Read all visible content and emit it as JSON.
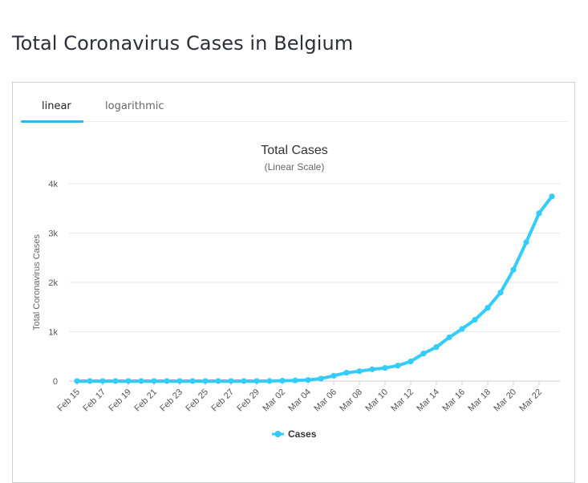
{
  "page": {
    "title": "Total Coronavirus Cases in Belgium"
  },
  "tabs": [
    {
      "label": "linear",
      "active": true
    },
    {
      "label": "logarithmic",
      "active": false
    }
  ],
  "colors": {
    "series": "#33ccff",
    "tab_accent": "#2fb4ef"
  },
  "chart_data": {
    "type": "line",
    "title": "Total Cases",
    "subtitle": "(Linear Scale)",
    "ylabel": "Total Coronavirus Cases",
    "xlabel": "",
    "ylim": [
      0,
      4000
    ],
    "yticks": [
      0,
      1000,
      2000,
      3000,
      4000
    ],
    "ytick_labels": [
      "0",
      "1k",
      "2k",
      "3k",
      "4k"
    ],
    "grid": true,
    "legend": "bottom-center",
    "x": [
      "Feb 15",
      "Feb 16",
      "Feb 17",
      "Feb 18",
      "Feb 19",
      "Feb 20",
      "Feb 21",
      "Feb 22",
      "Feb 23",
      "Feb 24",
      "Feb 25",
      "Feb 26",
      "Feb 27",
      "Feb 28",
      "Feb 29",
      "Mar 01",
      "Mar 02",
      "Mar 03",
      "Mar 04",
      "Mar 05",
      "Mar 06",
      "Mar 07",
      "Mar 08",
      "Mar 09",
      "Mar 10",
      "Mar 11",
      "Mar 12",
      "Mar 13",
      "Mar 14",
      "Mar 15",
      "Mar 16",
      "Mar 17",
      "Mar 18",
      "Mar 19",
      "Mar 20",
      "Mar 21",
      "Mar 22",
      "Mar 23"
    ],
    "xtick_labels": [
      "Feb 15",
      "Feb 17",
      "Feb 19",
      "Feb 21",
      "Feb 23",
      "Feb 25",
      "Feb 27",
      "Feb 29",
      "Mar 02",
      "Mar 04",
      "Mar 06",
      "Mar 08",
      "Mar 10",
      "Mar 12",
      "Mar 14",
      "Mar 16",
      "Mar 18",
      "Mar 20",
      "Mar 22"
    ],
    "series": [
      {
        "name": "Cases",
        "values": [
          1,
          1,
          1,
          1,
          1,
          1,
          1,
          1,
          1,
          1,
          1,
          1,
          1,
          1,
          1,
          2,
          8,
          13,
          23,
          50,
          109,
          169,
          200,
          239,
          267,
          314,
          399,
          559,
          689,
          886,
          1058,
          1243,
          1486,
          1795,
          2257,
          2815,
          3401,
          3743
        ]
      }
    ]
  }
}
